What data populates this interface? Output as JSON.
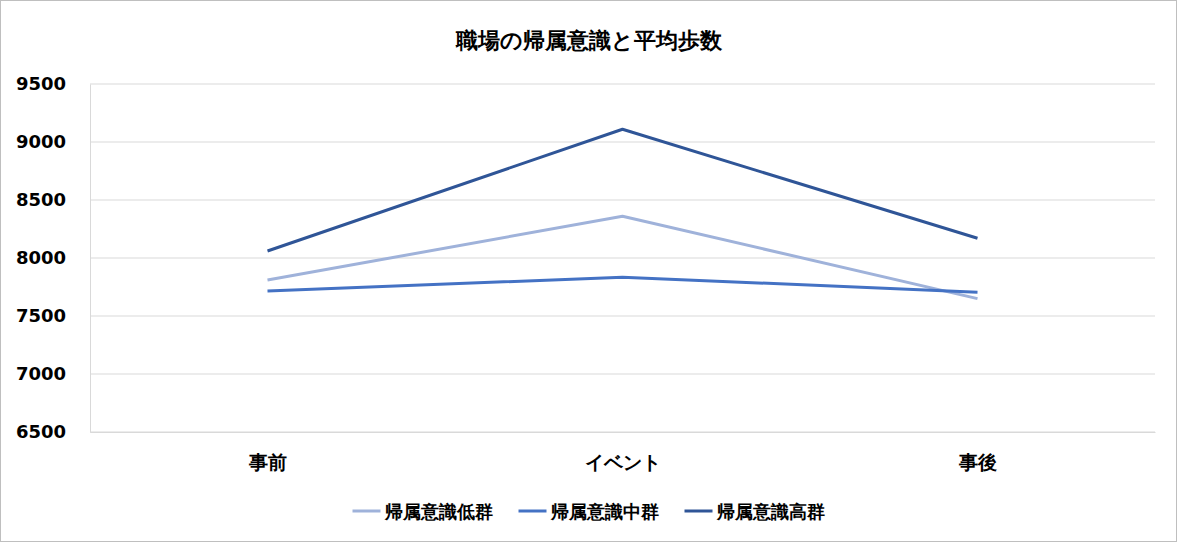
{
  "chart_data": {
    "type": "line",
    "title": "職場の帰属意識と平均歩数",
    "categories": [
      "事前",
      "イベント",
      "事後"
    ],
    "series": [
      {
        "name": "帰属意識低群",
        "color": "#9fb2da",
        "values": [
          7810,
          8360,
          7650
        ]
      },
      {
        "name": "帰属意識中群",
        "color": "#4472c4",
        "values": [
          7715,
          7835,
          7705
        ]
      },
      {
        "name": "帰属意識高群",
        "color": "#2f5597",
        "values": [
          8060,
          9110,
          8170
        ]
      }
    ],
    "ylim": [
      6500,
      9500
    ],
    "yticks": [
      6500,
      7000,
      7500,
      8000,
      8500,
      9000,
      9500
    ],
    "grid": true,
    "legend": "bottom"
  }
}
